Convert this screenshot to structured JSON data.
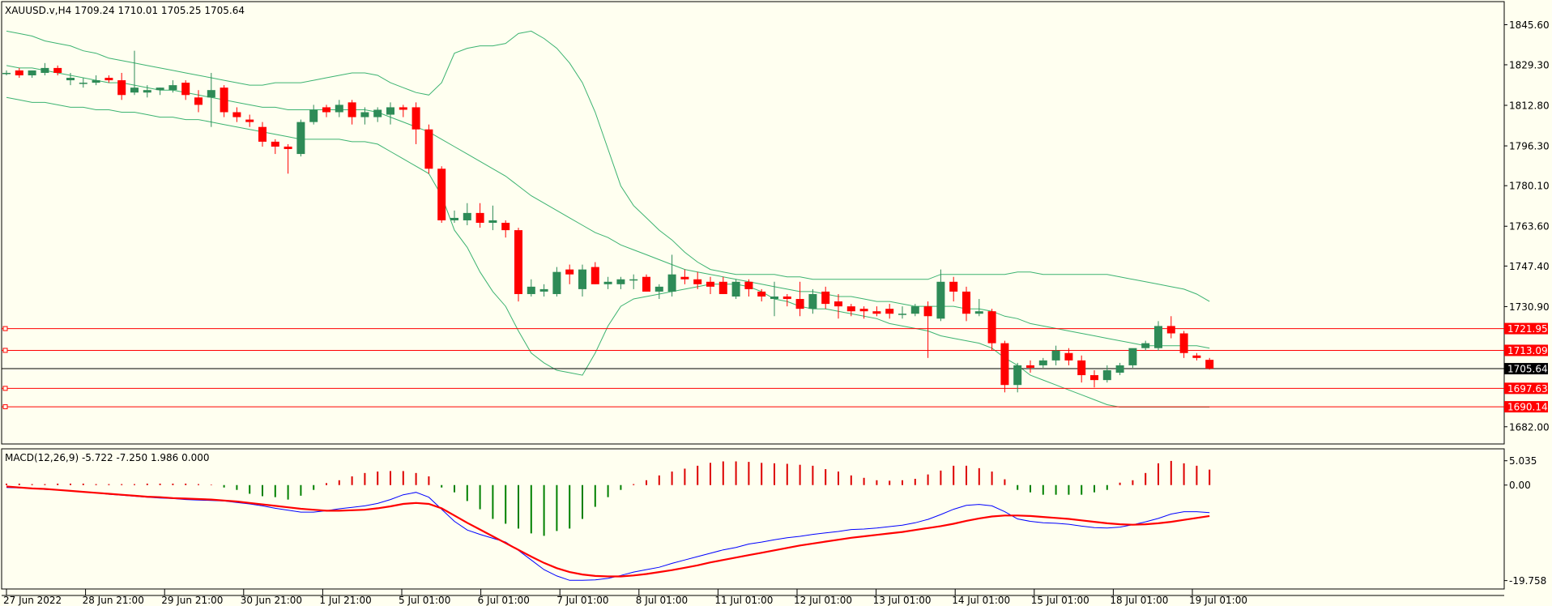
{
  "symbol_header": "XAUUSD.v,H4  1709.24 1710.01 1705.25 1705.64",
  "macd_header": "MACD(12,26,9) -5.722 -7.250 1.986 0.000",
  "colors": {
    "background": "#fffff0",
    "bull": "#2e8b57",
    "bear": "#ff0000",
    "bands": "#3cb371",
    "hist_up": "#dd0000",
    "hist_down": "#008000",
    "macd_line": "#0000ff",
    "signal_line": "#ff0000",
    "level_line": "#ff0000",
    "current_price": "#000000"
  },
  "price_axis": {
    "min": 1675,
    "max": 1855,
    "ticks": [
      "1845.60",
      "1829.30",
      "1812.80",
      "1796.30",
      "1780.10",
      "1763.60",
      "1747.40",
      "1730.90",
      "1682.00"
    ]
  },
  "price_levels": [
    {
      "value": 1721.95,
      "label": "1721.95"
    },
    {
      "value": 1713.09,
      "label": "1713.09"
    },
    {
      "value": 1697.63,
      "label": "1697.63"
    },
    {
      "value": 1690.14,
      "label": "1690.14"
    }
  ],
  "current_price": {
    "value": 1705.64,
    "label": "1705.64"
  },
  "macd_axis": {
    "min": -21.5,
    "max": 7.5,
    "ticks": [
      {
        "value": 5.035,
        "label": "5.035"
      },
      {
        "value": 0,
        "label": "0.00"
      },
      {
        "value": -19.758,
        "label": "-19.758"
      }
    ]
  },
  "time_axis": [
    "27 Jun 2022",
    "28 Jun 21:00",
    "29 Jun 21:00",
    "30 Jun 21:00",
    "1 Jul 21:00",
    "5 Jul 01:00",
    "6 Jul 01:00",
    "7 Jul 01:00",
    "8 Jul 01:00",
    "11 Jul 01:00",
    "12 Jul 01:00",
    "13 Jul 01:00",
    "14 Jul 01:00",
    "15 Jul 01:00",
    "18 Jul 01:00",
    "19 Jul 01:00"
  ],
  "chart_data": {
    "type": "candlestick",
    "candles": [
      [
        1826,
        1827,
        1825,
        1826
      ],
      [
        1827,
        1828,
        1824,
        1825
      ],
      [
        1825,
        1827,
        1824,
        1827
      ],
      [
        1826,
        1830,
        1825,
        1828
      ],
      [
        1828,
        1829,
        1825,
        1826
      ],
      [
        1823,
        1826,
        1821,
        1824
      ],
      [
        1822,
        1824,
        1820,
        1822
      ],
      [
        1822,
        1825,
        1821,
        1823
      ],
      [
        1824,
        1825,
        1822,
        1823
      ],
      [
        1823,
        1826,
        1815,
        1817
      ],
      [
        1818,
        1835,
        1817,
        1820
      ],
      [
        1818,
        1821,
        1816,
        1819
      ],
      [
        1819,
        1820,
        1817,
        1820
      ],
      [
        1819,
        1823,
        1818,
        1821
      ],
      [
        1822,
        1823,
        1815,
        1817
      ],
      [
        1816,
        1819,
        1810,
        1813
      ],
      [
        1816,
        1826,
        1804,
        1819
      ],
      [
        1820,
        1821,
        1808,
        1810
      ],
      [
        1810,
        1812,
        1806,
        1808
      ],
      [
        1807,
        1809,
        1804,
        1806
      ],
      [
        1804,
        1806,
        1796,
        1798
      ],
      [
        1798,
        1799,
        1793,
        1796
      ],
      [
        1796,
        1797,
        1785,
        1795
      ],
      [
        1793,
        1807,
        1792,
        1806
      ],
      [
        1806,
        1813,
        1805,
        1811
      ],
      [
        1812,
        1813,
        1808,
        1810
      ],
      [
        1810,
        1815,
        1808,
        1813
      ],
      [
        1814,
        1815,
        1805,
        1808
      ],
      [
        1808,
        1812,
        1805,
        1810
      ],
      [
        1808,
        1812,
        1806,
        1811
      ],
      [
        1809,
        1814,
        1805,
        1812
      ],
      [
        1812,
        1813,
        1808,
        1811
      ],
      [
        1812,
        1814,
        1797,
        1803
      ],
      [
        1803,
        1805,
        1785,
        1787
      ],
      [
        1787,
        1788,
        1765,
        1766
      ],
      [
        1766,
        1770,
        1765,
        1767
      ],
      [
        1766,
        1773,
        1764,
        1769
      ],
      [
        1769,
        1773,
        1763,
        1765
      ],
      [
        1765,
        1772,
        1762,
        1766
      ],
      [
        1765,
        1766,
        1759,
        1762
      ],
      [
        1762,
        1763,
        1733,
        1736
      ],
      [
        1736,
        1742,
        1735,
        1739
      ],
      [
        1737,
        1740,
        1735,
        1738
      ],
      [
        1736,
        1747,
        1735,
        1745
      ],
      [
        1746,
        1748,
        1740,
        1744
      ],
      [
        1738,
        1748,
        1735,
        1746
      ],
      [
        1747,
        1749,
        1740,
        1740
      ],
      [
        1740,
        1743,
        1738,
        1741
      ],
      [
        1740,
        1743,
        1738,
        1742
      ],
      [
        1742,
        1744,
        1738,
        1742
      ],
      [
        1743,
        1744,
        1737,
        1737
      ],
      [
        1737,
        1740,
        1734,
        1739
      ],
      [
        1737,
        1752,
        1735,
        1744
      ],
      [
        1743,
        1746,
        1740,
        1742
      ],
      [
        1742,
        1745,
        1738,
        1740
      ],
      [
        1741,
        1743,
        1736,
        1739
      ],
      [
        1741,
        1743,
        1736,
        1736
      ],
      [
        1735,
        1742,
        1734,
        1741
      ],
      [
        1741,
        1742,
        1735,
        1738
      ],
      [
        1737,
        1738,
        1733,
        1735
      ],
      [
        1734,
        1741,
        1727,
        1735
      ],
      [
        1735,
        1736,
        1731,
        1734
      ],
      [
        1734,
        1741,
        1727,
        1730
      ],
      [
        1730,
        1738,
        1728,
        1736
      ],
      [
        1737,
        1739,
        1730,
        1732
      ],
      [
        1733,
        1736,
        1726,
        1731
      ],
      [
        1731,
        1732,
        1727,
        1729
      ],
      [
        1730,
        1731,
        1726,
        1729
      ],
      [
        1729,
        1731,
        1727,
        1728
      ],
      [
        1730,
        1732,
        1726,
        1728
      ],
      [
        1728,
        1731,
        1726,
        1728
      ],
      [
        1728,
        1732,
        1727,
        1731
      ],
      [
        1731,
        1733,
        1710,
        1727
      ],
      [
        1726,
        1746,
        1725,
        1741
      ],
      [
        1741,
        1743,
        1733,
        1737
      ],
      [
        1737,
        1739,
        1725,
        1728
      ],
      [
        1728,
        1734,
        1727,
        1729
      ],
      [
        1729,
        1730,
        1713,
        1716
      ],
      [
        1716,
        1717,
        1696,
        1699
      ],
      [
        1699,
        1708,
        1696,
        1707
      ],
      [
        1707,
        1709,
        1704,
        1706
      ],
      [
        1707,
        1710,
        1706,
        1709
      ],
      [
        1709,
        1715,
        1707,
        1713
      ],
      [
        1712,
        1714,
        1707,
        1709
      ],
      [
        1709,
        1711,
        1700,
        1703
      ],
      [
        1703,
        1705,
        1698,
        1701
      ],
      [
        1701,
        1707,
        1700,
        1705
      ],
      [
        1704,
        1708,
        1703,
        1707
      ],
      [
        1707,
        1713,
        1706,
        1714
      ],
      [
        1714,
        1717,
        1713,
        1716
      ],
      [
        1714,
        1725,
        1713,
        1723
      ],
      [
        1723,
        1727,
        1718,
        1720
      ],
      [
        1720,
        1721,
        1710,
        1712
      ],
      [
        1711,
        1712,
        1709,
        1710
      ],
      [
        1709.24,
        1710.01,
        1705.25,
        1705.64
      ]
    ],
    "bollinger": {
      "period": 20,
      "upper": [
        1843,
        1842,
        1841,
        1839,
        1838,
        1837,
        1835,
        1834,
        1832,
        1831,
        1830,
        1829,
        1828,
        1827,
        1826,
        1825,
        1824,
        1823,
        1822,
        1821,
        1821,
        1822,
        1822,
        1822,
        1823,
        1824,
        1825,
        1826,
        1826,
        1825,
        1822,
        1820,
        1818,
        1817,
        1822,
        1834,
        1836,
        1837,
        1837,
        1838,
        1842,
        1843,
        1840,
        1836,
        1830,
        1822,
        1810,
        1795,
        1780,
        1772,
        1767,
        1762,
        1758,
        1753,
        1749,
        1746,
        1745,
        1744,
        1744,
        1744,
        1744,
        1743,
        1743,
        1742,
        1742,
        1742,
        1742,
        1742,
        1742,
        1742,
        1742,
        1742,
        1742,
        1744,
        1744,
        1744,
        1744,
        1744,
        1744,
        1745,
        1745,
        1744,
        1744,
        1744,
        1744,
        1744,
        1744,
        1743,
        1742,
        1741,
        1740,
        1739,
        1738,
        1736,
        1733
      ],
      "middle": [
        1829,
        1828,
        1828,
        1827,
        1826,
        1825,
        1824,
        1823,
        1822,
        1822,
        1821,
        1820,
        1819,
        1819,
        1818,
        1817,
        1816,
        1815,
        1814,
        1813,
        1812,
        1812,
        1811,
        1811,
        1811,
        1811,
        1811,
        1811,
        1811,
        1810,
        1808,
        1806,
        1804,
        1802,
        1799,
        1796,
        1793,
        1790,
        1787,
        1784,
        1780,
        1776,
        1773,
        1770,
        1767,
        1764,
        1761,
        1759,
        1756,
        1754,
        1752,
        1750,
        1748,
        1746,
        1745,
        1744,
        1743,
        1742,
        1741,
        1740,
        1739,
        1738,
        1737,
        1737,
        1736,
        1735,
        1735,
        1734,
        1733,
        1733,
        1732,
        1731,
        1731,
        1731,
        1731,
        1730,
        1730,
        1729,
        1727,
        1726,
        1724,
        1723,
        1722,
        1721,
        1720,
        1719,
        1718,
        1717,
        1716,
        1715,
        1715,
        1715,
        1715,
        1715,
        1714
      ],
      "lower": [
        1816,
        1815,
        1814,
        1814,
        1813,
        1812,
        1812,
        1811,
        1811,
        1810,
        1810,
        1809,
        1808,
        1808,
        1807,
        1807,
        1806,
        1805,
        1804,
        1803,
        1802,
        1801,
        1800,
        1799,
        1799,
        1799,
        1799,
        1798,
        1798,
        1797,
        1794,
        1791,
        1788,
        1785,
        1776,
        1762,
        1755,
        1745,
        1737,
        1731,
        1721,
        1712,
        1708,
        1705,
        1704,
        1703,
        1712,
        1723,
        1731,
        1734,
        1735,
        1736,
        1737,
        1738,
        1739,
        1740,
        1740,
        1740,
        1739,
        1737,
        1734,
        1733,
        1731,
        1730,
        1730,
        1729,
        1728,
        1727,
        1726,
        1724,
        1723,
        1722,
        1721,
        1719,
        1718,
        1717,
        1716,
        1714,
        1710,
        1707,
        1703,
        1701,
        1699,
        1697,
        1695,
        1693,
        1691,
        1690,
        1690,
        1690,
        1690,
        1690,
        1690,
        1690,
        1690
      ]
    },
    "macd": {
      "params": "12,26,9",
      "macd_line": [
        -0.5,
        -0.6,
        -0.7,
        -0.9,
        -1.0,
        -1.2,
        -1.4,
        -1.6,
        -1.9,
        -2.1,
        -2.3,
        -2.5,
        -2.7,
        -2.8,
        -3.0,
        -3.1,
        -3.2,
        -3.3,
        -3.6,
        -3.9,
        -4.3,
        -4.8,
        -5.2,
        -5.6,
        -5.6,
        -5.3,
        -4.9,
        -4.6,
        -4.3,
        -3.8,
        -3.0,
        -2.0,
        -1.5,
        -2.5,
        -5.0,
        -7.5,
        -9.3,
        -10.2,
        -11.0,
        -11.8,
        -13.5,
        -15.5,
        -17.5,
        -18.8,
        -19.7,
        -19.7,
        -19.6,
        -19.3,
        -18.7,
        -18.0,
        -17.5,
        -17.0,
        -16.2,
        -15.5,
        -14.8,
        -14.1,
        -13.4,
        -12.9,
        -12.2,
        -11.8,
        -11.3,
        -10.9,
        -10.6,
        -10.2,
        -9.9,
        -9.6,
        -9.2,
        -9.1,
        -8.9,
        -8.6,
        -8.3,
        -7.8,
        -7.1,
        -6.1,
        -5.0,
        -4.2,
        -4.0,
        -4.3,
        -5.5,
        -7.0,
        -7.5,
        -7.8,
        -7.9,
        -8.1,
        -8.5,
        -8.8,
        -8.9,
        -8.7,
        -8.2,
        -7.6,
        -6.9,
        -6.0,
        -5.5,
        -5.5,
        -5.7
      ],
      "signal_line": [
        -0.3,
        -0.5,
        -0.7,
        -0.8,
        -1.0,
        -1.2,
        -1.4,
        -1.6,
        -1.8,
        -2.0,
        -2.2,
        -2.4,
        -2.5,
        -2.7,
        -2.8,
        -2.9,
        -3.0,
        -3.2,
        -3.4,
        -3.7,
        -4.0,
        -4.3,
        -4.6,
        -4.9,
        -5.1,
        -5.3,
        -5.3,
        -5.2,
        -5.1,
        -4.8,
        -4.4,
        -3.9,
        -3.7,
        -3.9,
        -4.8,
        -6.3,
        -7.8,
        -9.2,
        -10.6,
        -12.0,
        -13.4,
        -14.8,
        -16.1,
        -17.2,
        -18.0,
        -18.5,
        -18.8,
        -18.9,
        -18.9,
        -18.7,
        -18.4,
        -18.0,
        -17.6,
        -17.1,
        -16.6,
        -16.0,
        -15.5,
        -15.0,
        -14.5,
        -14.0,
        -13.5,
        -13.0,
        -12.5,
        -12.1,
        -11.7,
        -11.3,
        -10.9,
        -10.6,
        -10.3,
        -10.0,
        -9.7,
        -9.3,
        -8.9,
        -8.5,
        -8.0,
        -7.4,
        -6.9,
        -6.5,
        -6.3,
        -6.3,
        -6.4,
        -6.6,
        -6.8,
        -7.0,
        -7.3,
        -7.6,
        -7.9,
        -8.1,
        -8.2,
        -8.1,
        -7.9,
        -7.6,
        -7.2,
        -6.8,
        -6.4
      ],
      "histogram": [
        0.3,
        0.3,
        0.2,
        0.2,
        0.3,
        0.3,
        0.3,
        0.2,
        0.2,
        0.2,
        0.2,
        0.3,
        0.3,
        0.3,
        0.3,
        0.2,
        0.1,
        -0.5,
        -1.0,
        -1.8,
        -2.3,
        -2.5,
        -3.0,
        -2.2,
        -1.0,
        0.4,
        1.0,
        1.8,
        2.5,
        2.8,
        2.9,
        2.9,
        2.5,
        1.8,
        -0.5,
        -1.5,
        -3.3,
        -5.0,
        -7.0,
        -8.0,
        -9.0,
        -10.0,
        -10.5,
        -9.5,
        -9.0,
        -7.0,
        -4.5,
        -2.5,
        -1.0,
        0.2,
        1.0,
        2.0,
        2.8,
        3.4,
        4.0,
        4.6,
        4.9,
        4.9,
        4.8,
        4.6,
        4.5,
        4.4,
        4.2,
        4.0,
        3.3,
        2.8,
        2.0,
        1.5,
        1.0,
        0.9,
        1.0,
        1.3,
        2.2,
        3.0,
        4.0,
        4.0,
        3.5,
        2.8,
        1.2,
        -1.0,
        -1.5,
        -2.0,
        -2.0,
        -2.0,
        -2.0,
        -1.5,
        -1.0,
        0.5,
        1.0,
        2.5,
        4.5,
        5.0,
        4.5,
        4.0,
        3.2
      ]
    }
  }
}
